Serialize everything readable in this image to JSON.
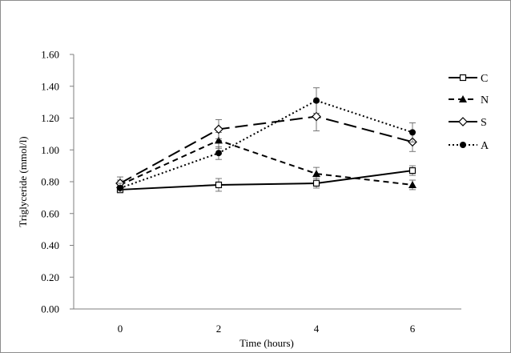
{
  "chart_data": {
    "type": "line",
    "title": "",
    "xlabel": "Time (hours)",
    "ylabel": "Triglyceride  (mmol/l)",
    "x": [
      0,
      2,
      4,
      6
    ],
    "x_tick_labels": [
      "0",
      "2",
      "4",
      "6"
    ],
    "y_tick_labels": [
      "0.00",
      "0.20",
      "0.40",
      "0.60",
      "0.80",
      "1.00",
      "1.20",
      "1.40",
      "1.60"
    ],
    "ylim": [
      0,
      1.6
    ],
    "grid": false,
    "legend_position": "right",
    "series": [
      {
        "name": "C",
        "values": [
          0.75,
          0.78,
          0.79,
          0.87
        ],
        "errors": [
          0.02,
          0.04,
          0.03,
          0.03
        ],
        "line_style": "solid",
        "marker": "open-square",
        "color": "#000000"
      },
      {
        "name": "N",
        "values": [
          0.78,
          1.06,
          0.85,
          0.78
        ],
        "errors": [
          0.03,
          0.05,
          0.04,
          0.03
        ],
        "line_style": "short-dash",
        "marker": "filled-triangle",
        "color": "#000000"
      },
      {
        "name": "S",
        "values": [
          0.79,
          1.13,
          1.21,
          1.05
        ],
        "errors": [
          0.04,
          0.06,
          0.09,
          0.06
        ],
        "line_style": "long-dash",
        "marker": "open-diamond",
        "color": "#000000"
      },
      {
        "name": "A",
        "values": [
          0.76,
          0.98,
          1.31,
          1.11
        ],
        "errors": [
          0.03,
          0.04,
          0.08,
          0.06
        ],
        "line_style": "dotted",
        "marker": "filled-circle",
        "color": "#000000"
      }
    ]
  }
}
